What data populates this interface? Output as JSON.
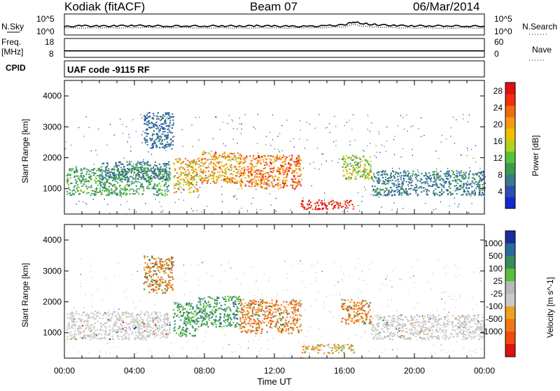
{
  "header": {
    "site": "Kodiak (fitACF)",
    "beam": "Beam 07",
    "date": "06/Mar/2014"
  },
  "noise_panel": {
    "left_label": "N.Sky",
    "right_label": "N.Search",
    "left_ticks": [
      "10^5",
      "10^0"
    ],
    "right_ticks": [
      "10^5",
      "10^0"
    ]
  },
  "freq_panel": {
    "left_label_1": "Freq.",
    "left_label_2": "[MHz]",
    "right_label": "Nave",
    "left_ticks": [
      "18",
      "8"
    ],
    "right_ticks": [
      "60",
      "0"
    ]
  },
  "cpid_panel": {
    "label": "CPID",
    "text": "UAF code -9115 RF"
  },
  "colors": {
    "bg_scatter_velocity": "#c8c8c8",
    "power_scale": [
      "#1428d0",
      "#2a4fb0",
      "#3a7a8a",
      "#3c9a50",
      "#58c23a",
      "#b6d020",
      "#f0c000",
      "#f59a10",
      "#f06a10",
      "#f03010",
      "#e01010"
    ],
    "velocity_scale": [
      "#1a2ea0",
      "#2a6a9a",
      "#3a8a5a",
      "#5abe3c",
      "#b8b8b8",
      "#c9c9c9",
      "#f0a020",
      "#f07810",
      "#f04a10",
      "#e01010"
    ]
  },
  "chart_data": [
    {
      "type": "line",
      "name": "noise",
      "ylim_log10": [
        0,
        5
      ],
      "series": [
        {
          "name": "N.Sky",
          "style": "solid",
          "x_hours": [
            0,
            1,
            2,
            3,
            4,
            5,
            6,
            7,
            8,
            9,
            10,
            11,
            12,
            13,
            14,
            15,
            16,
            16.5,
            17,
            17.5,
            18,
            19,
            20,
            21,
            22,
            23,
            24
          ],
          "log10_values": [
            2.0,
            2.3,
            2.2,
            2.3,
            2.4,
            2.3,
            2.2,
            2.3,
            2.2,
            2.3,
            2.2,
            2.3,
            2.2,
            2.1,
            2.1,
            2.3,
            2.6,
            3.6,
            3.1,
            2.8,
            2.6,
            2.4,
            2.3,
            2.3,
            2.3,
            2.2,
            2.2
          ]
        },
        {
          "name": "N.Search",
          "style": "dotted",
          "x_hours": [
            0,
            2,
            4,
            6,
            8,
            10,
            12,
            14,
            16,
            16.5,
            17,
            18,
            20,
            22,
            24
          ],
          "log10_values": [
            1.6,
            1.6,
            1.7,
            1.7,
            1.6,
            1.6,
            1.6,
            1.6,
            1.9,
            2.8,
            2.2,
            1.8,
            1.6,
            1.6,
            1.6
          ]
        }
      ]
    },
    {
      "type": "line",
      "name": "frequency_nave",
      "freq_range_mhz": [
        8,
        18
      ],
      "nave_range": [
        0,
        60
      ],
      "freq_value_mhz": 11.6,
      "nave_value": 21
    },
    {
      "type": "heatmap",
      "name": "power",
      "xlabel": "",
      "ylabel": "Slant Range [km]",
      "xlim_hours": [
        0,
        24
      ],
      "ylim_km": [
        180,
        4500
      ],
      "y_ticks": [
        1000,
        2000,
        3000,
        4000
      ],
      "colorbar_label": "Power [dB]",
      "colorbar_ticks": [
        4,
        8,
        12,
        16,
        20,
        24,
        28
      ],
      "colorbar_range": [
        0,
        30
      ],
      "regions": [
        {
          "t0": 0.1,
          "t1": 6.0,
          "r0": 800,
          "r1": 1700,
          "level": [
            6,
            14
          ]
        },
        {
          "t0": 2.0,
          "t1": 6.0,
          "r0": 1300,
          "r1": 1900,
          "level": [
            4,
            10
          ]
        },
        {
          "t0": 4.5,
          "t1": 6.2,
          "r0": 2300,
          "r1": 3500,
          "level": [
            4,
            8
          ]
        },
        {
          "t0": 6.2,
          "t1": 7.6,
          "r0": 900,
          "r1": 2000,
          "level": [
            12,
            24
          ]
        },
        {
          "t0": 7.6,
          "t1": 10.0,
          "r0": 1200,
          "r1": 2200,
          "level": [
            14,
            26
          ]
        },
        {
          "t0": 10.0,
          "t1": 13.5,
          "r0": 1000,
          "r1": 2100,
          "level": [
            18,
            28
          ]
        },
        {
          "t0": 13.5,
          "t1": 16.5,
          "r0": 350,
          "r1": 650,
          "level": [
            24,
            30
          ]
        },
        {
          "t0": 15.8,
          "t1": 17.5,
          "r0": 1300,
          "r1": 2100,
          "level": [
            8,
            20
          ]
        },
        {
          "t0": 17.5,
          "t1": 24.0,
          "r0": 800,
          "r1": 1600,
          "level": [
            4,
            10
          ]
        }
      ]
    },
    {
      "type": "heatmap",
      "name": "velocity",
      "xlabel": "Time UT",
      "ylabel": "Slant Range [km]",
      "xlim_hours": [
        0,
        24
      ],
      "x_ticks": [
        "00:00",
        "04:00",
        "08:00",
        "12:00",
        "16:00",
        "20:00",
        "00:00"
      ],
      "ylim_km": [
        180,
        4500
      ],
      "y_ticks": [
        1000,
        2000,
        3000,
        4000
      ],
      "colorbar_label": "Velocity [m s^-1]",
      "colorbar_ticks": [
        "1000",
        "500",
        "100",
        "25",
        "-25",
        "-100",
        "-500",
        "-1000"
      ],
      "regions": [
        {
          "t0": 0.1,
          "t1": 6.0,
          "r0": 800,
          "r1": 1700,
          "class": "ground"
        },
        {
          "t0": 4.5,
          "t1": 6.2,
          "r0": 2300,
          "r1": 3500,
          "class": "neg"
        },
        {
          "t0": 6.2,
          "t1": 7.6,
          "r0": 900,
          "r1": 2000,
          "class": "pos"
        },
        {
          "t0": 7.6,
          "t1": 10.0,
          "r0": 1200,
          "r1": 2200,
          "class": "pos"
        },
        {
          "t0": 10.0,
          "t1": 13.5,
          "r0": 1000,
          "r1": 2100,
          "class": "neg"
        },
        {
          "t0": 13.5,
          "t1": 16.5,
          "r0": 350,
          "r1": 650,
          "class": "mixed"
        },
        {
          "t0": 15.8,
          "t1": 17.5,
          "r0": 1300,
          "r1": 2100,
          "class": "neg"
        },
        {
          "t0": 17.5,
          "t1": 24.0,
          "r0": 800,
          "r1": 1600,
          "class": "ground"
        }
      ]
    }
  ]
}
